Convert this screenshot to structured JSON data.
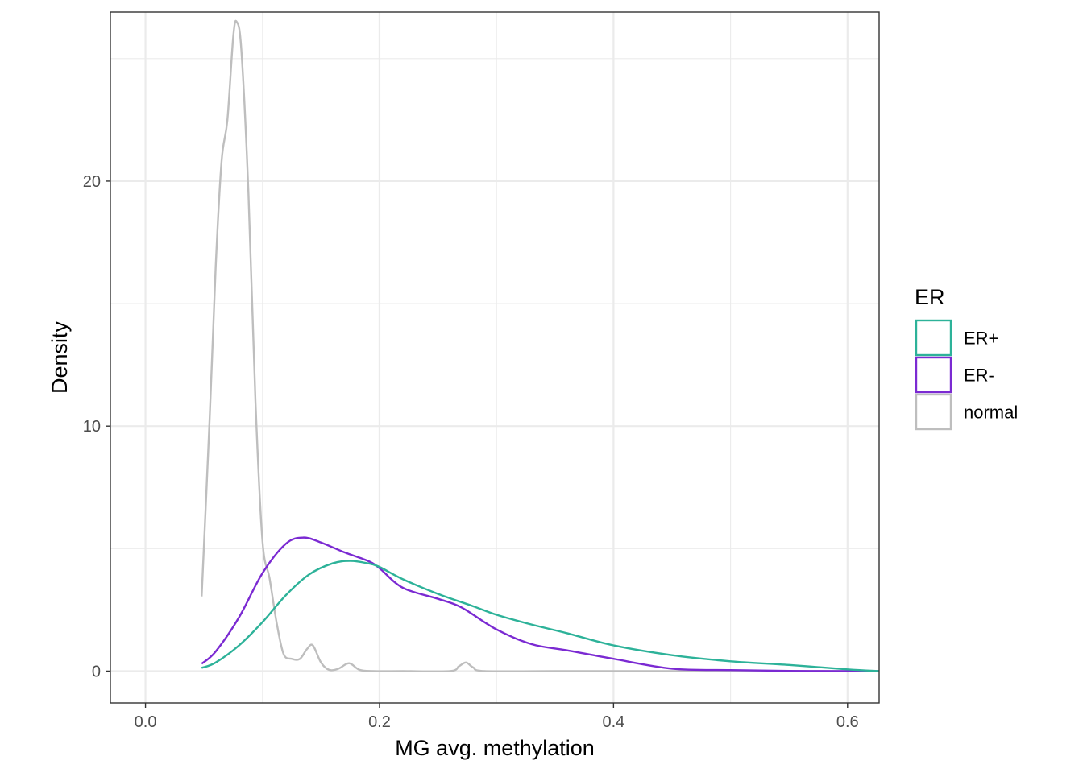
{
  "chart_data": {
    "type": "line",
    "subtype": "density",
    "title": "",
    "xlabel": "MG avg. methylation",
    "ylabel": "Density",
    "xlim": [
      -0.03,
      0.627
    ],
    "ylim": [
      -1.3,
      26.9
    ],
    "x_ticks": [
      {
        "value": 0.0,
        "label": "0.0"
      },
      {
        "value": 0.2,
        "label": "0.2"
      },
      {
        "value": 0.4,
        "label": "0.4"
      },
      {
        "value": 0.6,
        "label": "0.6"
      }
    ],
    "y_ticks": [
      {
        "value": 0,
        "label": "0"
      },
      {
        "value": 10,
        "label": "10"
      },
      {
        "value": 20,
        "label": "20"
      }
    ],
    "x_minor": [
      0.1,
      0.3,
      0.5
    ],
    "y_minor": [
      5,
      15,
      25
    ],
    "grid": true,
    "legend": {
      "title": "ER",
      "position": "right"
    },
    "series": [
      {
        "name": "ER+",
        "color": "#2db299",
        "x": [
          0.048,
          0.06,
          0.08,
          0.1,
          0.12,
          0.14,
          0.16,
          0.175,
          0.19,
          0.2,
          0.22,
          0.25,
          0.28,
          0.3,
          0.33,
          0.36,
          0.4,
          0.45,
          0.5,
          0.55,
          0.6,
          0.627
        ],
        "y": [
          0.13,
          0.35,
          1.05,
          2.0,
          3.1,
          3.95,
          4.4,
          4.5,
          4.4,
          4.25,
          3.75,
          3.15,
          2.65,
          2.3,
          1.9,
          1.55,
          1.05,
          0.65,
          0.4,
          0.25,
          0.07,
          0.0
        ]
      },
      {
        "name": "ER-",
        "color": "#7b2ad2",
        "x": [
          0.048,
          0.06,
          0.08,
          0.1,
          0.12,
          0.135,
          0.15,
          0.17,
          0.19,
          0.2,
          0.22,
          0.25,
          0.27,
          0.3,
          0.33,
          0.36,
          0.4,
          0.45,
          0.5,
          0.55,
          0.6,
          0.627
        ],
        "y": [
          0.3,
          0.8,
          2.2,
          4.0,
          5.2,
          5.45,
          5.25,
          4.85,
          4.5,
          4.2,
          3.4,
          2.95,
          2.6,
          1.7,
          1.1,
          0.85,
          0.5,
          0.1,
          0.04,
          0.01,
          0.0,
          0.0
        ]
      },
      {
        "name": "normal",
        "color": "#bebebe",
        "x": [
          0.048,
          0.055,
          0.06,
          0.065,
          0.07,
          0.075,
          0.078,
          0.082,
          0.088,
          0.094,
          0.1,
          0.106,
          0.112,
          0.118,
          0.125,
          0.132,
          0.138,
          0.143,
          0.15,
          0.157,
          0.165,
          0.174,
          0.183,
          0.195,
          0.22,
          0.26,
          0.268,
          0.274,
          0.28,
          0.29,
          0.35,
          0.45,
          0.627
        ],
        "y": [
          3.05,
          10.5,
          16.5,
          20.8,
          22.5,
          25.9,
          26.5,
          25.3,
          19.5,
          11.0,
          5.3,
          3.8,
          2.0,
          0.7,
          0.5,
          0.5,
          0.9,
          1.05,
          0.35,
          0.05,
          0.1,
          0.32,
          0.05,
          0.0,
          0.0,
          0.0,
          0.2,
          0.35,
          0.15,
          0.0,
          0.0,
          0.0,
          0.0
        ]
      }
    ]
  }
}
